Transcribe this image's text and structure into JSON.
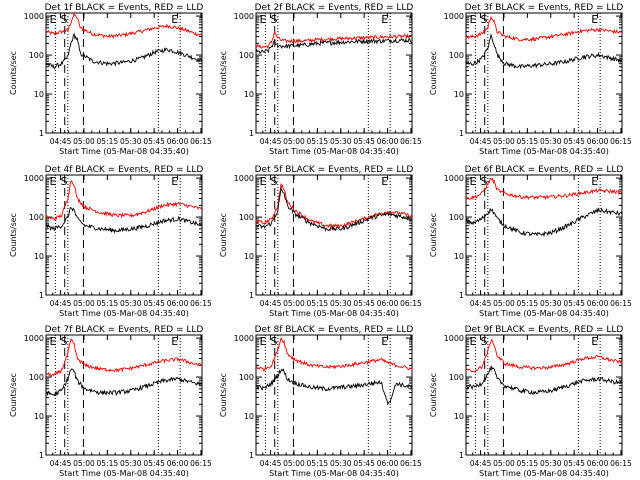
{
  "colors": {
    "events": "#000000",
    "lld": "#ff0000",
    "axes": "#000000",
    "background": "#ffffff"
  },
  "chart_data": {
    "type": "line",
    "scale": "log",
    "ylabel": "Counts/sec",
    "xlabel": "Start Time (05-Mar-08 04:35:40)",
    "x_ticks": [
      "04:45",
      "05:00",
      "05:15",
      "05:30",
      "05:45",
      "06:00",
      "06:15"
    ],
    "y_ticks": [
      "1",
      "10",
      "100",
      "1000"
    ],
    "ylim": [
      1,
      1200
    ],
    "x_unit": "minutes after 04:35:40",
    "xlim": [
      0,
      100
    ],
    "marker_labels": [
      "E",
      "S",
      "E"
    ],
    "legend": "BLACK = Events, RED = LLD",
    "grid": "dotted vertical",
    "panels": [
      {
        "title": "Det 1f BLACK = Events, RED = LLD",
        "lld_points": [
          [
            0,
            400
          ],
          [
            5,
            350
          ],
          [
            10,
            400
          ],
          [
            14,
            420
          ],
          [
            16,
            700
          ],
          [
            18,
            1100
          ],
          [
            20,
            900
          ],
          [
            22,
            500
          ],
          [
            30,
            350
          ],
          [
            40,
            300
          ],
          [
            50,
            330
          ],
          [
            60,
            400
          ],
          [
            70,
            500
          ],
          [
            78,
            560
          ],
          [
            84,
            500
          ],
          [
            90,
            430
          ],
          [
            96,
            350
          ],
          [
            100,
            330
          ]
        ],
        "events_points": [
          [
            0,
            60
          ],
          [
            5,
            50
          ],
          [
            10,
            60
          ],
          [
            14,
            90
          ],
          [
            16,
            200
          ],
          [
            18,
            330
          ],
          [
            20,
            250
          ],
          [
            22,
            110
          ],
          [
            30,
            70
          ],
          [
            40,
            60
          ],
          [
            50,
            65
          ],
          [
            60,
            80
          ],
          [
            70,
            120
          ],
          [
            78,
            140
          ],
          [
            84,
            120
          ],
          [
            90,
            100
          ],
          [
            96,
            80
          ],
          [
            100,
            70
          ]
        ]
      },
      {
        "title": "Det 2f BLACK = Events, RED = LLD",
        "lld_points": [
          [
            0,
            170
          ],
          [
            5,
            160
          ],
          [
            8,
            170
          ],
          [
            10,
            220
          ],
          [
            12,
            400
          ],
          [
            13,
            300
          ],
          [
            16,
            240
          ],
          [
            20,
            230
          ],
          [
            30,
            230
          ],
          [
            40,
            250
          ],
          [
            50,
            260
          ],
          [
            60,
            270
          ],
          [
            70,
            280
          ],
          [
            80,
            290
          ],
          [
            90,
            300
          ],
          [
            100,
            300
          ]
        ],
        "events_points": [
          [
            0,
            120
          ],
          [
            5,
            120
          ],
          [
            8,
            130
          ],
          [
            10,
            170
          ],
          [
            12,
            220
          ],
          [
            13,
            180
          ],
          [
            16,
            170
          ],
          [
            20,
            170
          ],
          [
            30,
            180
          ],
          [
            40,
            200
          ],
          [
            50,
            210
          ],
          [
            60,
            220
          ],
          [
            70,
            230
          ],
          [
            80,
            230
          ],
          [
            90,
            240
          ],
          [
            100,
            240
          ]
        ]
      },
      {
        "title": "Det 3f BLACK = Events, RED = LLD",
        "lld_points": [
          [
            0,
            280
          ],
          [
            5,
            300
          ],
          [
            10,
            350
          ],
          [
            14,
            500
          ],
          [
            16,
            1000
          ],
          [
            18,
            700
          ],
          [
            20,
            400
          ],
          [
            25,
            300
          ],
          [
            35,
            250
          ],
          [
            45,
            260
          ],
          [
            55,
            300
          ],
          [
            65,
            350
          ],
          [
            75,
            420
          ],
          [
            85,
            450
          ],
          [
            95,
            400
          ],
          [
            100,
            380
          ]
        ],
        "events_points": [
          [
            0,
            60
          ],
          [
            5,
            60
          ],
          [
            10,
            80
          ],
          [
            14,
            150
          ],
          [
            16,
            320
          ],
          [
            18,
            200
          ],
          [
            20,
            100
          ],
          [
            25,
            60
          ],
          [
            35,
            50
          ],
          [
            45,
            55
          ],
          [
            55,
            60
          ],
          [
            65,
            70
          ],
          [
            75,
            90
          ],
          [
            85,
            100
          ],
          [
            95,
            80
          ],
          [
            100,
            70
          ]
        ]
      },
      {
        "title": "Det 4f BLACK = Events, RED = LLD",
        "lld_points": [
          [
            0,
            100
          ],
          [
            5,
            90
          ],
          [
            10,
            110
          ],
          [
            14,
            300
          ],
          [
            16,
            900
          ],
          [
            18,
            700
          ],
          [
            20,
            300
          ],
          [
            25,
            180
          ],
          [
            35,
            130
          ],
          [
            45,
            110
          ],
          [
            55,
            110
          ],
          [
            65,
            140
          ],
          [
            75,
            200
          ],
          [
            85,
            220
          ],
          [
            95,
            180
          ],
          [
            100,
            160
          ]
        ],
        "events_points": [
          [
            0,
            60
          ],
          [
            5,
            50
          ],
          [
            10,
            60
          ],
          [
            14,
            100
          ],
          [
            16,
            180
          ],
          [
            18,
            150
          ],
          [
            20,
            90
          ],
          [
            25,
            60
          ],
          [
            35,
            50
          ],
          [
            45,
            45
          ],
          [
            55,
            50
          ],
          [
            65,
            60
          ],
          [
            75,
            80
          ],
          [
            85,
            90
          ],
          [
            95,
            70
          ],
          [
            100,
            60
          ]
        ]
      },
      {
        "title": "Det 5f BLACK = Events, RED = LLD",
        "lld_points": [
          [
            0,
            80
          ],
          [
            5,
            70
          ],
          [
            10,
            90
          ],
          [
            14,
            200
          ],
          [
            16,
            700
          ],
          [
            18,
            500
          ],
          [
            20,
            250
          ],
          [
            25,
            150
          ],
          [
            35,
            80
          ],
          [
            45,
            60
          ],
          [
            55,
            60
          ],
          [
            65,
            80
          ],
          [
            75,
            110
          ],
          [
            85,
            140
          ],
          [
            95,
            120
          ],
          [
            100,
            100
          ]
        ],
        "events_points": [
          [
            0,
            60
          ],
          [
            5,
            55
          ],
          [
            10,
            70
          ],
          [
            14,
            150
          ],
          [
            16,
            500
          ],
          [
            18,
            400
          ],
          [
            20,
            200
          ],
          [
            25,
            120
          ],
          [
            35,
            70
          ],
          [
            45,
            50
          ],
          [
            55,
            50
          ],
          [
            65,
            70
          ],
          [
            75,
            100
          ],
          [
            85,
            120
          ],
          [
            95,
            100
          ],
          [
            100,
            90
          ]
        ]
      },
      {
        "title": "Det 6f BLACK = Events, RED = LLD",
        "lld_points": [
          [
            0,
            300
          ],
          [
            5,
            320
          ],
          [
            10,
            400
          ],
          [
            14,
            700
          ],
          [
            16,
            1000
          ],
          [
            18,
            800
          ],
          [
            20,
            500
          ],
          [
            25,
            400
          ],
          [
            35,
            330
          ],
          [
            45,
            320
          ],
          [
            55,
            330
          ],
          [
            65,
            360
          ],
          [
            75,
            420
          ],
          [
            85,
            480
          ],
          [
            95,
            450
          ],
          [
            100,
            430
          ]
        ],
        "events_points": [
          [
            0,
            80
          ],
          [
            5,
            70
          ],
          [
            10,
            90
          ],
          [
            14,
            130
          ],
          [
            16,
            160
          ],
          [
            18,
            130
          ],
          [
            20,
            90
          ],
          [
            25,
            60
          ],
          [
            35,
            40
          ],
          [
            45,
            35
          ],
          [
            55,
            40
          ],
          [
            65,
            60
          ],
          [
            75,
            100
          ],
          [
            85,
            150
          ],
          [
            95,
            130
          ],
          [
            100,
            120
          ]
        ]
      },
      {
        "title": "Det 7f BLACK = Events, RED = LLD",
        "lld_points": [
          [
            0,
            120
          ],
          [
            5,
            110
          ],
          [
            10,
            150
          ],
          [
            14,
            400
          ],
          [
            16,
            900
          ],
          [
            18,
            700
          ],
          [
            20,
            300
          ],
          [
            25,
            200
          ],
          [
            35,
            160
          ],
          [
            45,
            150
          ],
          [
            55,
            170
          ],
          [
            65,
            210
          ],
          [
            75,
            260
          ],
          [
            85,
            290
          ],
          [
            95,
            220
          ],
          [
            100,
            200
          ]
        ],
        "events_points": [
          [
            0,
            40
          ],
          [
            5,
            35
          ],
          [
            10,
            45
          ],
          [
            14,
            90
          ],
          [
            16,
            160
          ],
          [
            18,
            140
          ],
          [
            20,
            80
          ],
          [
            25,
            50
          ],
          [
            35,
            40
          ],
          [
            45,
            40
          ],
          [
            55,
            45
          ],
          [
            65,
            60
          ],
          [
            75,
            80
          ],
          [
            85,
            90
          ],
          [
            95,
            70
          ],
          [
            100,
            65
          ]
        ]
      },
      {
        "title": "Det 8f BLACK = Events, RED = LLD",
        "lld_points": [
          [
            0,
            180
          ],
          [
            5,
            160
          ],
          [
            10,
            200
          ],
          [
            14,
            500
          ],
          [
            16,
            1000
          ],
          [
            18,
            800
          ],
          [
            20,
            400
          ],
          [
            25,
            280
          ],
          [
            35,
            200
          ],
          [
            45,
            180
          ],
          [
            55,
            190
          ],
          [
            65,
            220
          ],
          [
            75,
            260
          ],
          [
            80,
            280
          ],
          [
            85,
            230
          ],
          [
            90,
            200
          ],
          [
            95,
            180
          ],
          [
            100,
            160
          ]
        ],
        "events_points": [
          [
            0,
            60
          ],
          [
            5,
            50
          ],
          [
            10,
            70
          ],
          [
            14,
            110
          ],
          [
            16,
            160
          ],
          [
            18,
            140
          ],
          [
            20,
            90
          ],
          [
            25,
            70
          ],
          [
            35,
            55
          ],
          [
            45,
            50
          ],
          [
            55,
            55
          ],
          [
            65,
            60
          ],
          [
            75,
            70
          ],
          [
            80,
            75
          ],
          [
            85,
            20
          ],
          [
            90,
            70
          ],
          [
            95,
            60
          ],
          [
            100,
            55
          ]
        ]
      },
      {
        "title": "Det 9f BLACK = Events, RED = LLD",
        "lld_points": [
          [
            0,
            150
          ],
          [
            5,
            140
          ],
          [
            10,
            180
          ],
          [
            14,
            450
          ],
          [
            16,
            900
          ],
          [
            18,
            700
          ],
          [
            20,
            350
          ],
          [
            25,
            220
          ],
          [
            35,
            180
          ],
          [
            45,
            170
          ],
          [
            55,
            180
          ],
          [
            65,
            220
          ],
          [
            75,
            300
          ],
          [
            85,
            330
          ],
          [
            95,
            260
          ],
          [
            100,
            240
          ]
        ],
        "events_points": [
          [
            0,
            60
          ],
          [
            5,
            55
          ],
          [
            10,
            70
          ],
          [
            14,
            120
          ],
          [
            16,
            170
          ],
          [
            18,
            150
          ],
          [
            20,
            90
          ],
          [
            25,
            60
          ],
          [
            35,
            45
          ],
          [
            45,
            40
          ],
          [
            55,
            45
          ],
          [
            65,
            60
          ],
          [
            75,
            80
          ],
          [
            85,
            90
          ],
          [
            95,
            75
          ],
          [
            100,
            70
          ]
        ]
      }
    ]
  }
}
